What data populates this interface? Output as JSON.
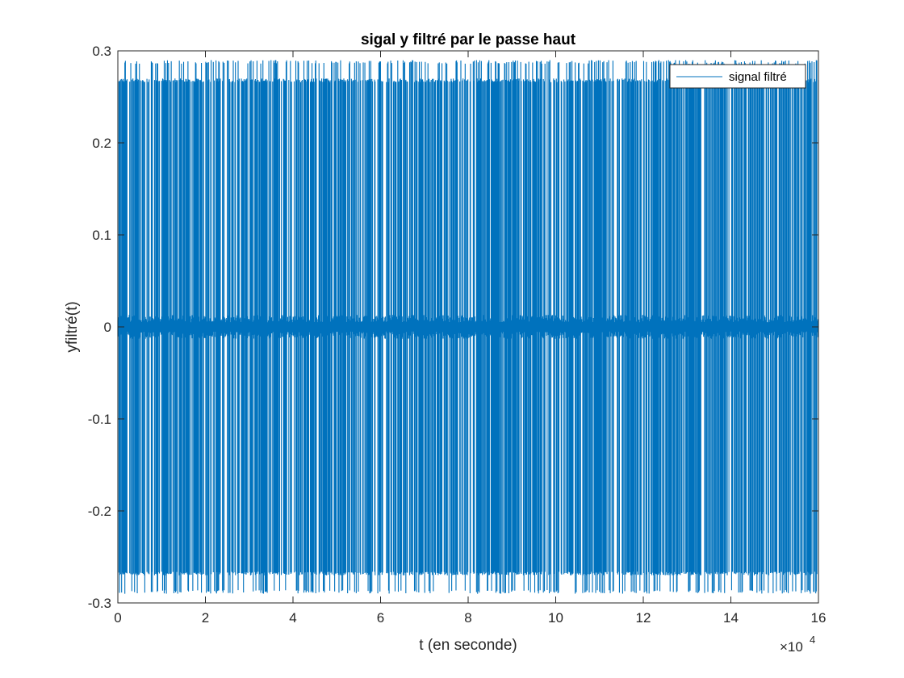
{
  "chart_data": {
    "type": "line",
    "title": "sigal y filtré par le passe haut",
    "xlabel": "t (en seconde)",
    "ylabel": "yfiltré(t)",
    "xlim": [
      0,
      160000
    ],
    "ylim": [
      -0.3,
      0.3
    ],
    "x_ticks": [
      0,
      20000,
      40000,
      60000,
      80000,
      100000,
      120000,
      140000,
      160000
    ],
    "x_tick_labels": [
      "0",
      "2",
      "4",
      "6",
      "8",
      "10",
      "12",
      "14",
      "16"
    ],
    "x_exponent_base": "×10",
    "x_exponent_power": "4",
    "y_ticks": [
      -0.3,
      -0.2,
      -0.1,
      0,
      0.1,
      0.2,
      0.3
    ],
    "y_tick_labels": [
      "-0.3",
      "-0.2",
      "-0.1",
      "0",
      "0.1",
      "0.2",
      "0.3"
    ],
    "series": [
      {
        "name": "signal filtré",
        "color": "#0072BD",
        "description_values": {
          "envelope_max": 0.29,
          "envelope_min": -0.29,
          "burst_level_high": 0.27,
          "burst_level_low": -0.27,
          "idle_level": 0.0,
          "x_start": 0,
          "x_end": 160000
        }
      }
    ],
    "legend": {
      "position": "top-right",
      "entries": [
        "signal filtré"
      ]
    },
    "grid": false
  }
}
